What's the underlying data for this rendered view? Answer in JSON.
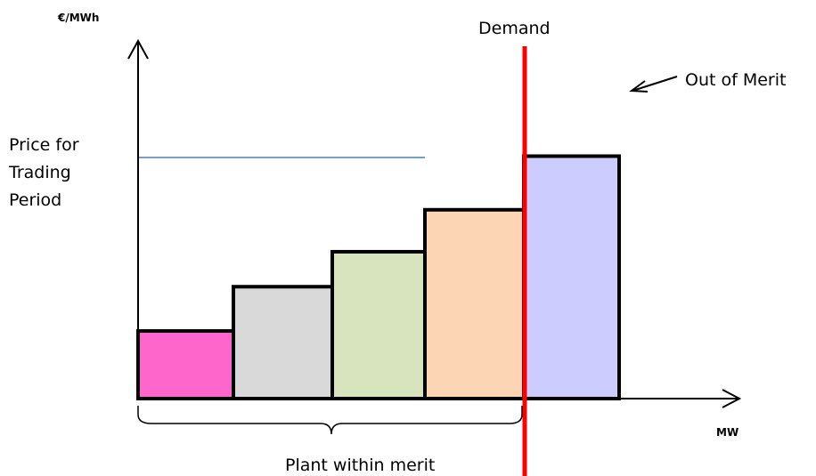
{
  "diagram": {
    "y_axis_label": "€/MWh",
    "x_axis_label": "MW",
    "price_label": [
      "Price for",
      "Trading",
      "Period"
    ],
    "demand_label": "Demand",
    "out_of_merit_label": "Out of Merit",
    "within_merit_label": "Plant within merit"
  },
  "chart_data": {
    "type": "bar",
    "title": "",
    "xlabel": "MW",
    "ylabel": "€/MWh",
    "blocks": [
      {
        "order": 1,
        "relative_price": 0.29,
        "color": "#FF66CC",
        "in_merit": true
      },
      {
        "order": 2,
        "relative_price": 0.48,
        "color": "#D9D9D9",
        "in_merit": true
      },
      {
        "order": 3,
        "relative_price": 0.63,
        "color": "#D7E4BD",
        "in_merit": true
      },
      {
        "order": 4,
        "relative_price": 0.81,
        "color": "#FCD5B5",
        "in_merit": true
      },
      {
        "order": 5,
        "relative_price": 1.04,
        "color": "#CCCCFF",
        "in_merit": false
      }
    ],
    "demand_line_color": "#FF0000",
    "price_line_color": "#4A7EBB"
  }
}
